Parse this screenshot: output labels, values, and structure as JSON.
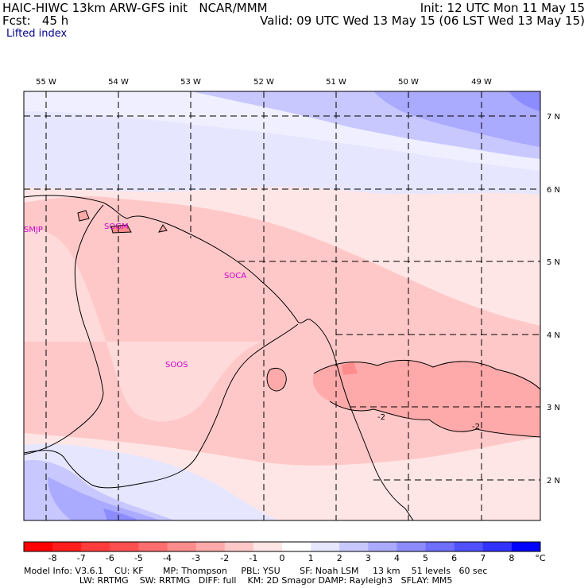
{
  "header": {
    "title_left": "HAIC-HIWC 13km ARW-GFS init   NCAR/MMM",
    "fcst_left": "Fcst:   45 h",
    "init_right": "Init: 12 UTC Mon 11 May 15",
    "valid_right": "Valid: 09 UTC Wed 13 May 15 (06 LST Wed 13 May 15)",
    "field_name": "Lifted index"
  },
  "map": {
    "lon_labels": [
      "55 W",
      "54 W",
      "53 W",
      "52 W",
      "51 W",
      "50 W",
      "49 W"
    ],
    "lat_labels": [
      "7 N",
      "6 N",
      "5 N",
      "4 N",
      "3 N",
      "2 N"
    ],
    "stations": [
      "SMJP",
      "SOGM",
      "SOCA",
      "SOOS"
    ],
    "contour_labels": [
      "-2",
      "-2"
    ]
  },
  "colorbar": {
    "labels": [
      "-8",
      "-7",
      "-6",
      "-5",
      "-4",
      "-3",
      "-2",
      "-1",
      "0",
      "1",
      "2",
      "3",
      "4",
      "5",
      "6",
      "7",
      "8"
    ],
    "unit": "°C",
    "colors": [
      "#ff0000",
      "#ff1e1e",
      "#ff3c3c",
      "#ff5050",
      "#ff6e6e",
      "#ff8c8c",
      "#ffaaaa",
      "#ffc8c8",
      "#ffe6e6",
      "#ffffff",
      "#e6e6ff",
      "#c8c8ff",
      "#aaaaff",
      "#8c8cff",
      "#6e6eff",
      "#5050ff",
      "#3232ff",
      "#0000ff"
    ]
  },
  "footer": {
    "line1": "Model Info: V3.6.1    CU: KF       MP: Thompson     PBL: YSU       SF: Noah LSM     13 km    51 levels   60 sec",
    "line2": "                    LW: RRTMG    SW: RRTMG   DIFF: full    KM: 2D Smagor DAMP: Rayleigh3   SFLAY: MM5"
  }
}
